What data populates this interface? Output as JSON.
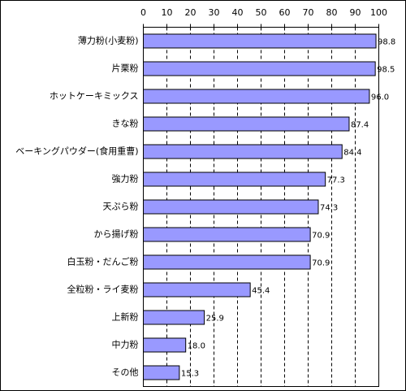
{
  "chart_data": {
    "type": "bar",
    "orientation": "horizontal",
    "categories": [
      "薄力粉(小麦粉)",
      "片栗粉",
      "ホットケーキミックス",
      "きな粉",
      "ベーキングパウダー(食用重曹)",
      "強力粉",
      "天ぷら粉",
      "から揚げ粉",
      "白玉粉・だんご粉",
      "全粒粉・ライ麦粉",
      "上新粉",
      "中力粉",
      "その他"
    ],
    "values": [
      98.8,
      98.5,
      96.0,
      87.4,
      84.4,
      77.3,
      74.3,
      70.9,
      70.9,
      45.4,
      25.9,
      18.0,
      15.3
    ],
    "value_labels": [
      "98.8",
      "98.5",
      "96.0",
      "87.4",
      "84.4",
      "77.3",
      "74.3",
      "70.9",
      "70.9",
      "45.4",
      "25.9",
      "18.0",
      "15.3"
    ],
    "color": "#9999ff",
    "xlim": [
      0,
      100
    ],
    "xticks": [
      0,
      10,
      20,
      30,
      40,
      50,
      60,
      70,
      80,
      90,
      100
    ],
    "grid": true
  }
}
